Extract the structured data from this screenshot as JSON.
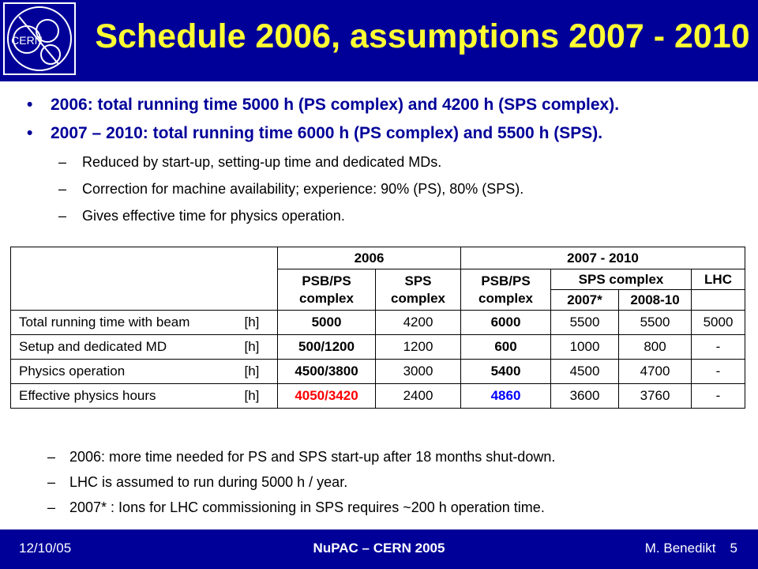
{
  "title": "Schedule 2006, assumptions 2007 - 2010",
  "logo_text": "CERN",
  "bullets": [
    {
      "marker": "•",
      "text": "2006: total running time 5000 h (PS complex) and 4200 h (SPS complex)."
    },
    {
      "marker": "•",
      "text": "2007 – 2010: total running time 6000 h (PS complex) and 5500 h (SPS)."
    }
  ],
  "subbullets": [
    {
      "marker": "–",
      "text": "Reduced by start-up, setting-up time and dedicated MDs."
    },
    {
      "marker": "–",
      "text": "Correction for machine availability; experience: 90% (PS), 80% (SPS)."
    },
    {
      "marker": "–",
      "text": "Gives effective time for physics operation."
    }
  ],
  "table": {
    "group_2006": "2006",
    "group_2007": "2007 - 2010",
    "h_psbps_2006": [
      "PSB/PS",
      "complex"
    ],
    "h_sps_2006": [
      "SPS",
      "complex"
    ],
    "h_psbps_2007": [
      "PSB/PS",
      "complex"
    ],
    "h_spscomplex": "SPS complex",
    "h_lhc": "LHC",
    "h_2007star": "2007*",
    "h_2008": "2008-10",
    "rows": [
      {
        "label": "Total running time with beam",
        "unit": "[h]",
        "c1": "5000",
        "c2": "4200",
        "c3": "6000",
        "c4": "5500",
        "c5": "5500",
        "c6": "5000"
      },
      {
        "label": "Setup and dedicated MD",
        "unit": "[h]",
        "c1": "500/1200",
        "c2": "1200",
        "c3": "600",
        "c4": "1000",
        "c5": "800",
        "c6": "-"
      },
      {
        "label": "Physics operation",
        "unit": "[h]",
        "c1": "4500/3800",
        "c2": "3000",
        "c3": "5400",
        "c4": "4500",
        "c5": "4700",
        "c6": "-"
      },
      {
        "label": "Effective physics hours",
        "unit": "[h]",
        "c1": "4050/3420",
        "c2": "2400",
        "c3": "4860",
        "c4": "3600",
        "c5": "3760",
        "c6": "-"
      }
    ]
  },
  "notes": [
    {
      "marker": "–",
      "text": "2006: more time needed for PS and SPS start-up after 18 months shut-down."
    },
    {
      "marker": "–",
      "text": "LHC is assumed to run during 5000 h / year."
    },
    {
      "marker": "–",
      "text": "2007* : Ions for LHC commissioning in SPS requires ~200 h operation time."
    }
  ],
  "footer": {
    "date": "12/10/05",
    "center": "NuPAC – CERN 2005",
    "author": "M. Benedikt",
    "page": "5"
  },
  "colors": {
    "header_bg": "#000099",
    "title": "#ffff33",
    "bullet_text": "#000099",
    "highlight_red": "#ff0000",
    "highlight_blue": "#0000ff"
  }
}
